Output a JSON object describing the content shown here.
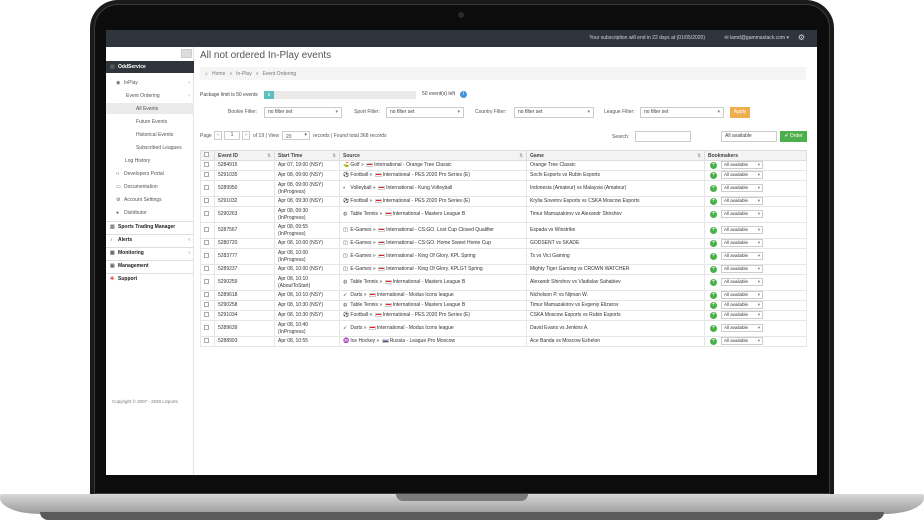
{
  "topbar": {
    "notice": "Your subscription will end in 22 days at (01/05/2020)",
    "user": "lamd@gammastack.com",
    "user_caret": "▾"
  },
  "sidebar": {
    "oddservice": "OddService",
    "inplay": "InPlay",
    "event_ordering": "Event Ordering",
    "all_events": "All Events",
    "future_events": "Future Events",
    "historical_events": "Historical Events",
    "subscribed_leagues": "Subscribed Leagues",
    "log_history": "Log History",
    "developers_portal": "Developers Portal",
    "documentation": "Documentation",
    "account_settings": "Account Settings",
    "distributor": "Distributor",
    "sports_trading_manager": "Sports Trading Manager",
    "alerts": "Alerts",
    "monitoring": "Monitoring",
    "management": "Management",
    "support": "Support",
    "copyright": "Copyright © 2007 - 2020 LSports"
  },
  "page": {
    "title": "All not ordered In-Play events",
    "breadcrumb": [
      "Home",
      "In-Play",
      "Event Ordering"
    ],
    "breadcrumb_sep": "»"
  },
  "package": {
    "label": "Package limit is 50 events",
    "used": "0",
    "used_fraction": 0.0,
    "left": "50 event(s) left",
    "info": "i"
  },
  "filters": {
    "bookie_label": "Bookie Filter:",
    "bookie_value": "no filter set",
    "sport_label": "Sport Filter:",
    "sport_value": "no filter set",
    "country_label": "Country Filter:",
    "country_value": "no filter set",
    "league_label": "League Filter:",
    "league_value": "no filter set",
    "apply": "Apply"
  },
  "pager": {
    "page_label": "Page",
    "prev": "‹",
    "page": "1",
    "next": "›",
    "of": "of 19 | View",
    "per_page": "20",
    "records": "records | Found total 368 records",
    "search_label": "Search:",
    "availability": "All available",
    "order_button": "✔ Order"
  },
  "table": {
    "headers": {
      "event_id": "Event ID",
      "start_time": "Start Time",
      "source": "Source",
      "game": "Game",
      "bookmakers": "Bookmakers"
    },
    "bookmaker_option": "All available",
    "rows": [
      {
        "id": "5284915",
        "start": "Apr 07, 19:00 (NSY)",
        "status": "",
        "sport": "Golf",
        "country": "International",
        "league": "Orange Tree Classic",
        "game": "Orange Tree Classic",
        "icon": "⛳",
        "flag": "int"
      },
      {
        "id": "5291035",
        "start": "Apr 08, 09:00 (NSY)",
        "status": "",
        "sport": "Football",
        "country": "International",
        "league": "PES 2020 Pro Series (E)",
        "game": "Sochi Esports vs Rubin Esports",
        "icon": "⚽",
        "flag": "int"
      },
      {
        "id": "5289950",
        "start": "Apr 08, 09:00 (NSY)",
        "status": "(InProgress)",
        "sport": "Volleyball",
        "country": "International",
        "league": "Kung Volleyball",
        "game": "Indonesia (Amateur) vs Malaysia (Amateur)",
        "icon": "◐",
        "flag": "int"
      },
      {
        "id": "5291032",
        "start": "Apr 08, 09:30 (NSY)",
        "status": "",
        "sport": "Football",
        "country": "International",
        "league": "PES 2020 Pro Series (E)",
        "game": "Krylia Sovetov Esports vs CSKA Moscow Esports",
        "icon": "⚽",
        "flag": "int"
      },
      {
        "id": "5290263",
        "start": "Apr 08, 09:30",
        "status": "(InProgress)",
        "sport": "Table Tennis",
        "country": "International",
        "league": "Masters League B",
        "game": "Timur Mamazakirov vs Alexandr Shirshov",
        "icon": "◍",
        "flag": "int"
      },
      {
        "id": "5287567",
        "start": "Apr 08, 09:55",
        "status": "(InProgress)",
        "sport": "E-Games",
        "country": "International",
        "league": "CS:GO. Lost Cup Closed Qualifier",
        "game": "Espada vs Winstrike",
        "icon": "◫",
        "flag": "int"
      },
      {
        "id": "5280720",
        "start": "Apr 08, 10:00 (NSY)",
        "status": "",
        "sport": "E-Games",
        "country": "International",
        "league": "CS:GO. Home Sweet Home Cup",
        "game": "GODSENT vs SKADE",
        "icon": "◫",
        "flag": "int"
      },
      {
        "id": "5283777",
        "start": "Apr 08, 10:00",
        "status": "(InProgress)",
        "sport": "E-Games",
        "country": "International",
        "league": "King Of Glory. KPL Spring",
        "game": "Ts vs Vici Gaming",
        "icon": "◫",
        "flag": "int"
      },
      {
        "id": "5289237",
        "start": "Apr 08, 10:00 (NSY)",
        "status": "",
        "sport": "E-Games",
        "country": "International",
        "league": "King Of Glory. KPLGT Spring",
        "game": "Mighty Tiger Gaming vs CROWN WATCHER",
        "icon": "◫",
        "flag": "int"
      },
      {
        "id": "5290259",
        "start": "Apr 08, 10:10",
        "status": "(AboutToStart)",
        "sport": "Table Tennis",
        "country": "International",
        "league": "Masters League B",
        "game": "Alexandr Shirshov vs Vladislav Sahabiev",
        "icon": "◍",
        "flag": "int"
      },
      {
        "id": "5289618",
        "start": "Apr 08, 10:10 (NSY)",
        "status": "",
        "sport": "Darts",
        "country": "International",
        "league": "Modus Icons league",
        "game": "Nicholson P. vs Nijman W.",
        "icon": "➶",
        "flag": "int"
      },
      {
        "id": "5290258",
        "start": "Apr 08, 10:30 (NSY)",
        "status": "",
        "sport": "Table Tennis",
        "country": "International",
        "league": "Masters League B",
        "game": "Timur Mamazakirov vs Evgeniy Elizarov",
        "icon": "◍",
        "flag": "int"
      },
      {
        "id": "5291034",
        "start": "Apr 08, 10:30 (NSY)",
        "status": "",
        "sport": "Football",
        "country": "International",
        "league": "PES 2020 Pro Series (E)",
        "game": "CSKA Moscow Esports vs Rubin Esports",
        "icon": "⚽",
        "flag": "int"
      },
      {
        "id": "5289639",
        "start": "Apr 08, 10:40",
        "status": "(InProgress)",
        "sport": "Darts",
        "country": "International",
        "league": "Modus Icons league",
        "game": "David Evans vs Jenkins A.",
        "icon": "➶",
        "flag": "int"
      },
      {
        "id": "5288993",
        "start": "Apr 08, 10:55",
        "status": "",
        "sport": "Ice Hockey",
        "country": "Russia",
        "league": "League Pro Moscow",
        "game": "Ace Banda vs Moscow Eshelon",
        "icon": "♒",
        "flag": "ru"
      }
    ]
  },
  "colors": {
    "topbar": "#2f353d",
    "accent_green": "#4cae4c",
    "apply_orange": "#f0ad4e",
    "package_fill": "#5bc0be"
  }
}
